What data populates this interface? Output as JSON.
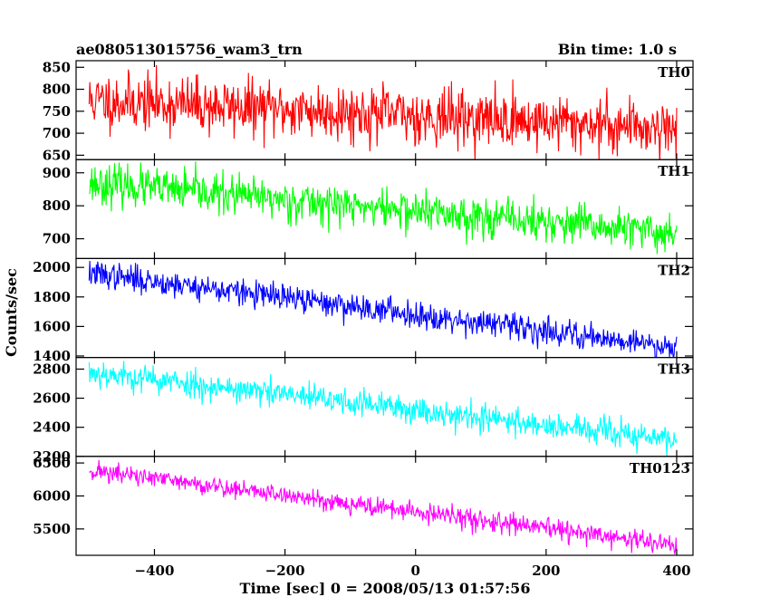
{
  "header": {
    "title": "ae080513015756_wam3_trn",
    "bin_time": "Bin time: 1.0 s"
  },
  "chart_data": {
    "type": "line",
    "title": "ae080513015756_wam3_trn",
    "subtitle": "Bin time: 1.0 s",
    "xlabel": "Time [sec] 0 = 2008/05/13 01:57:56",
    "ylabel": "Counts/sec",
    "xlim": [
      -520,
      425
    ],
    "x_range": [
      -500,
      400
    ],
    "xticks": [
      -400,
      -200,
      0,
      200,
      400
    ],
    "xtick_labels": [
      "−400",
      "−200",
      "0",
      "200",
      "400"
    ],
    "grid": false,
    "panels": [
      {
        "name": "TH0",
        "color": "#ff0000",
        "ylim": [
          640,
          865
        ],
        "yticks": [
          650,
          700,
          750,
          800,
          850
        ],
        "ytick_labels": [
          "650",
          "700",
          "750",
          "800",
          "850"
        ],
        "trend": {
          "start": 775,
          "end": 712
        },
        "noise_std": 32,
        "seed": 11
      },
      {
        "name": "TH1",
        "color": "#00ff00",
        "ylim": [
          640,
          940
        ],
        "yticks": [
          700,
          800,
          900
        ],
        "ytick_labels": [
          "700",
          "800",
          "900"
        ],
        "trend": {
          "start": 870,
          "end": 715
        },
        "noise_std": 30,
        "seed": 23
      },
      {
        "name": "TH2",
        "color": "#0000ff",
        "ylim": [
          1390,
          2060
        ],
        "yticks": [
          1400,
          1600,
          1800,
          2000
        ],
        "ytick_labels": [
          "1400",
          "1600",
          "1800",
          "2000"
        ],
        "trend": {
          "start": 1960,
          "end": 1460
        },
        "noise_std": 45,
        "seed": 37
      },
      {
        "name": "TH3",
        "color": "#00ffff",
        "ylim": [
          2200,
          2880
        ],
        "yticks": [
          2200,
          2400,
          2600,
          2800
        ],
        "ytick_labels": [
          "2200",
          "2400",
          "2600",
          "2800"
        ],
        "trend": {
          "start": 2780,
          "end": 2310
        },
        "noise_std": 48,
        "seed": 53
      },
      {
        "name": "TH0123",
        "color": "#ff00ff",
        "ylim": [
          5100,
          6600
        ],
        "yticks": [
          5500,
          6000,
          6500
        ],
        "ytick_labels": [
          "5500",
          "6000",
          "6500"
        ],
        "trend": {
          "start": 6390,
          "end": 5250
        },
        "noise_std": 75,
        "seed": 71
      }
    ]
  }
}
